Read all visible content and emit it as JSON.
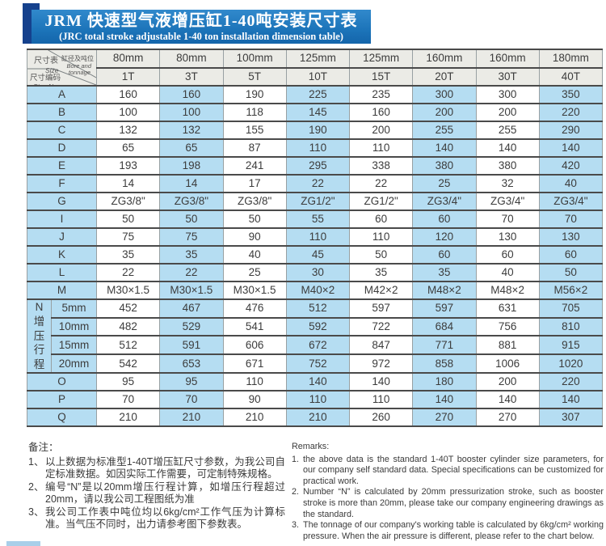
{
  "title": {
    "zh": "JRM 快速型气液增压缸1-40吨安装尺寸表",
    "en": "(JRC total stroke adjustable 1-40 ton installation dimension table)"
  },
  "colors": {
    "banner_blue": "#1c74b9",
    "banner_blue_light": "#3189cc",
    "ribbon_navy": "#15418d",
    "cell_blue": "#b5ddf2",
    "header_gray": "#ebebe6",
    "border_dark": "#4a4a4a",
    "border_light": "#98a0a2",
    "text_dark": "#3c3c3c"
  },
  "table": {
    "corner": {
      "size_zh": "尺寸表",
      "size_en": "Size",
      "bore_zh": "缸径及吨位",
      "bore_en_line1": "Bore and",
      "bore_en_line2": "tonnage",
      "sizeno_zh": "尺寸编码",
      "sizeno_en": "Size No."
    },
    "bore_headers": [
      "80mm",
      "80mm",
      "100mm",
      "125mm",
      "125mm",
      "160mm",
      "160mm",
      "180mm"
    ],
    "tonnage_headers": [
      "1T",
      "3T",
      "5T",
      "10T",
      "15T",
      "20T",
      "30T",
      "40T"
    ],
    "rows_top": [
      {
        "label": "A",
        "values": [
          "160",
          "160",
          "190",
          "225",
          "235",
          "300",
          "300",
          "350"
        ]
      },
      {
        "label": "B",
        "values": [
          "100",
          "100",
          "118",
          "145",
          "160",
          "200",
          "200",
          "220"
        ]
      },
      {
        "label": "C",
        "values": [
          "132",
          "132",
          "155",
          "190",
          "200",
          "255",
          "255",
          "290"
        ]
      },
      {
        "label": "D",
        "values": [
          "65",
          "65",
          "87",
          "110",
          "110",
          "140",
          "140",
          "140"
        ]
      },
      {
        "label": "E",
        "values": [
          "193",
          "198",
          "241",
          "295",
          "338",
          "380",
          "380",
          "420"
        ]
      },
      {
        "label": "F",
        "values": [
          "14",
          "14",
          "17",
          "22",
          "22",
          "25",
          "32",
          "40"
        ]
      },
      {
        "label": "G",
        "values": [
          "ZG3/8\"",
          "ZG3/8\"",
          "ZG3/8\"",
          "ZG1/2\"",
          "ZG1/2\"",
          "ZG3/4\"",
          "ZG3/4\"",
          "ZG3/4\""
        ]
      },
      {
        "label": "I",
        "values": [
          "50",
          "50",
          "50",
          "55",
          "60",
          "60",
          "70",
          "70"
        ]
      },
      {
        "label": "J",
        "values": [
          "75",
          "75",
          "90",
          "110",
          "110",
          "120",
          "130",
          "130"
        ]
      },
      {
        "label": "K",
        "values": [
          "35",
          "35",
          "40",
          "45",
          "50",
          "60",
          "60",
          "60"
        ]
      },
      {
        "label": "L",
        "values": [
          "22",
          "22",
          "25",
          "30",
          "35",
          "35",
          "40",
          "50"
        ]
      },
      {
        "label": "M",
        "values": [
          "M30×1.5",
          "M30×1.5",
          "M30×1.5",
          "M40×2",
          "M42×2",
          "M48×2",
          "M48×2",
          "M56×2"
        ]
      }
    ],
    "n_section": {
      "letter": "N",
      "label_zh": "增压行程",
      "rows": [
        {
          "label": "5mm",
          "values": [
            "452",
            "467",
            "476",
            "512",
            "597",
            "597",
            "631",
            "705"
          ]
        },
        {
          "label": "10mm",
          "values": [
            "482",
            "529",
            "541",
            "592",
            "722",
            "684",
            "756",
            "810"
          ]
        },
        {
          "label": "15mm",
          "values": [
            "512",
            "591",
            "606",
            "672",
            "847",
            "771",
            "881",
            "915"
          ]
        },
        {
          "label": "20mm",
          "values": [
            "542",
            "653",
            "671",
            "752",
            "972",
            "858",
            "1006",
            "1020"
          ]
        }
      ]
    },
    "rows_bottom": [
      {
        "label": "O",
        "values": [
          "95",
          "95",
          "110",
          "140",
          "140",
          "180",
          "200",
          "220"
        ]
      },
      {
        "label": "P",
        "values": [
          "70",
          "70",
          "90",
          "110",
          "110",
          "140",
          "140",
          "140"
        ]
      },
      {
        "label": "Q",
        "values": [
          "210",
          "210",
          "210",
          "210",
          "260",
          "270",
          "270",
          "307"
        ]
      }
    ]
  },
  "notes_zh": {
    "heading": "备注：",
    "items": [
      {
        "marker": "1、",
        "text": "以上数据为标准型1-40T增压缸尺寸参数，为我公司自定标准数据。如因实际工作需要，可定制特殊规格。"
      },
      {
        "marker": "2、",
        "text": "编号“N”是以20mm增压行程计算，如增压行程超过20mm，请以我公司工程图纸为准"
      },
      {
        "marker": "3、",
        "text": "我公司工作表中吨位均以6kg/cm²工作气压为计算标准。当气压不同时，出力请参考图下参数表。"
      }
    ]
  },
  "notes_en": {
    "heading": "Remarks:",
    "items": [
      {
        "marker": "1.",
        "text": "the above data is the standard 1-40T booster cylinder size parameters, for our company self standard data. Special specifications can be customized for practical work."
      },
      {
        "marker": "2.",
        "text": "Number “N” is calculated by 20mm pressurization stroke, such as booster stroke is more than 20mm, please take our company engineering drawings as the standard."
      },
      {
        "marker": "3.",
        "text": "The tonnage of our company's working table is calculated by 6kg/cm² working pressure. When the air pressure is different, please refer to the chart below."
      }
    ]
  }
}
